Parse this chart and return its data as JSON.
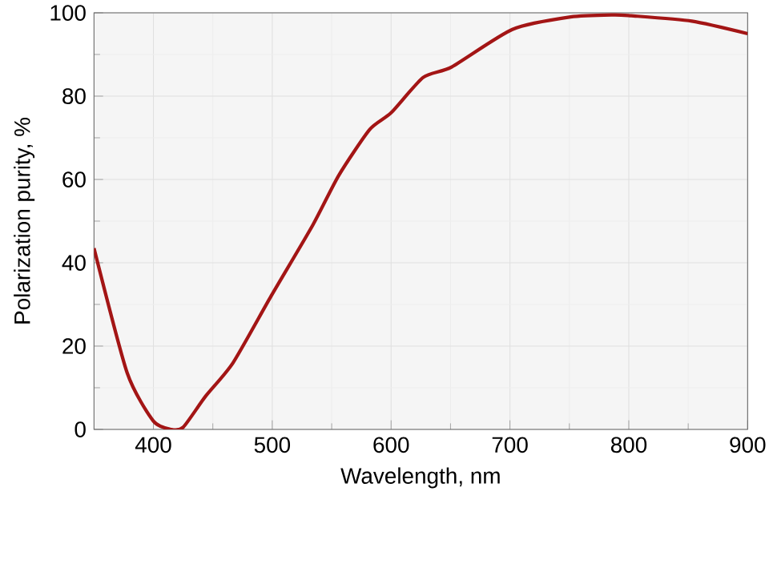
{
  "chart_data": {
    "type": "line",
    "xlabel": "Wavelength, nm",
    "ylabel": "Polarization purity, %",
    "x": [
      350,
      378,
      400,
      415,
      425,
      444,
      467,
      499,
      534,
      556,
      582,
      600,
      627,
      651,
      702,
      751,
      787,
      802,
      853,
      900
    ],
    "series": [
      {
        "color": "#a31515",
        "values": [
          43.5,
          13.5,
          2,
          0,
          0.5,
          8,
          16,
          32,
          49,
          61,
          72,
          76,
          84.5,
          87,
          96,
          99,
          99.5,
          99.3,
          98,
          95
        ]
      }
    ],
    "xlim": [
      350,
      900
    ],
    "xticks": [
      400,
      500,
      600,
      700,
      800,
      900
    ],
    "ylim": [
      0,
      100
    ],
    "yticks": [
      0,
      20,
      40,
      60,
      80,
      100
    ],
    "grid": true,
    "marker": "none",
    "line_style": "solid"
  }
}
